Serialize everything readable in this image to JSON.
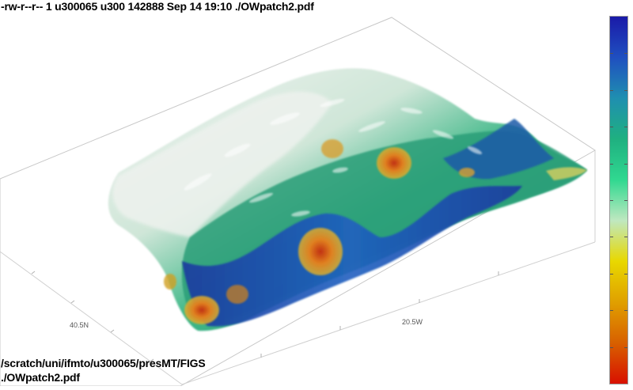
{
  "header": {
    "file_listing": "-rw-r--r-- 1 u300065 u300 142888 Sep 14 19:10 ./OWpatch2.pdf"
  },
  "footer": {
    "directory": "/scratch/uni/ifmto/u300065/presMT/FIGS",
    "filename": "./OWpatch2.pdf"
  },
  "colorbar": {
    "colors": [
      "#1a1aa8",
      "#1f4fc0",
      "#1f8fb0",
      "#1fb080",
      "#30d890",
      "#bfe8c0",
      "#e8d800",
      "#e0a000",
      "#d86000",
      "#d81000"
    ],
    "tick_count": 9
  },
  "surface": {
    "colors": {
      "low_relief": "#e8eee8",
      "mid": "#2fa878",
      "deep": "#1a40a0",
      "warm": "#d0a020",
      "hot": "#c05010"
    }
  }
}
